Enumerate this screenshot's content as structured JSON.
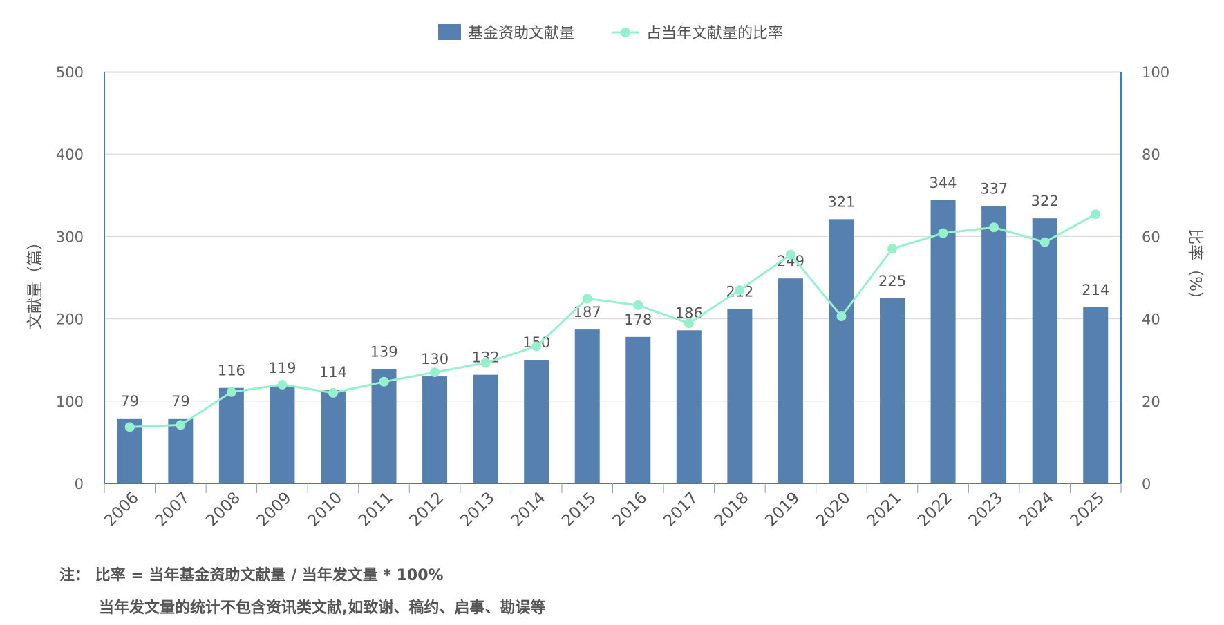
{
  "chart_data": {
    "type": "bar",
    "title": "",
    "categories": [
      "2006",
      "2007",
      "2008",
      "2009",
      "2010",
      "2011",
      "2012",
      "2013",
      "2014",
      "2015",
      "2016",
      "2017",
      "2018",
      "2019",
      "2020",
      "2021",
      "2022",
      "2023",
      "2024",
      "2025"
    ],
    "series": [
      {
        "name": "基金资助文献量",
        "type": "bar",
        "axis": "left",
        "color": "#5580b0",
        "values": [
          79,
          79,
          116,
          119,
          114,
          139,
          130,
          132,
          150,
          187,
          178,
          186,
          212,
          249,
          321,
          225,
          344,
          337,
          322,
          214
        ]
      },
      {
        "name": "占当年文献量的比率",
        "type": "line",
        "axis": "right",
        "color": "#95f0cb",
        "values": [
          13.7,
          14.2,
          22.2,
          24.0,
          22.0,
          24.7,
          27.0,
          29.3,
          33.3,
          44.9,
          43.3,
          38.9,
          47.0,
          55.6,
          40.6,
          57.0,
          60.8,
          62.2,
          58.6,
          65.4
        ]
      }
    ],
    "ylabel_left": "文献量（篇）",
    "ylabel_right": "比率（%）",
    "ylim_left": [
      0,
      500
    ],
    "ylim_right": [
      0,
      100
    ],
    "yticks_left": [
      "0",
      "100",
      "200",
      "300",
      "400",
      "500"
    ],
    "yticks_right": [
      "0",
      "20",
      "40",
      "60",
      "80",
      "100"
    ],
    "grid": true,
    "legend_position": "top-center"
  },
  "notes": {
    "line1": "注：  比率 = 当年基金资助文献量 / 当年发文量 * 100%",
    "line2": "当年发文量的统计不包含资讯类文献,如致谢、稿约、启事、勘误等"
  }
}
